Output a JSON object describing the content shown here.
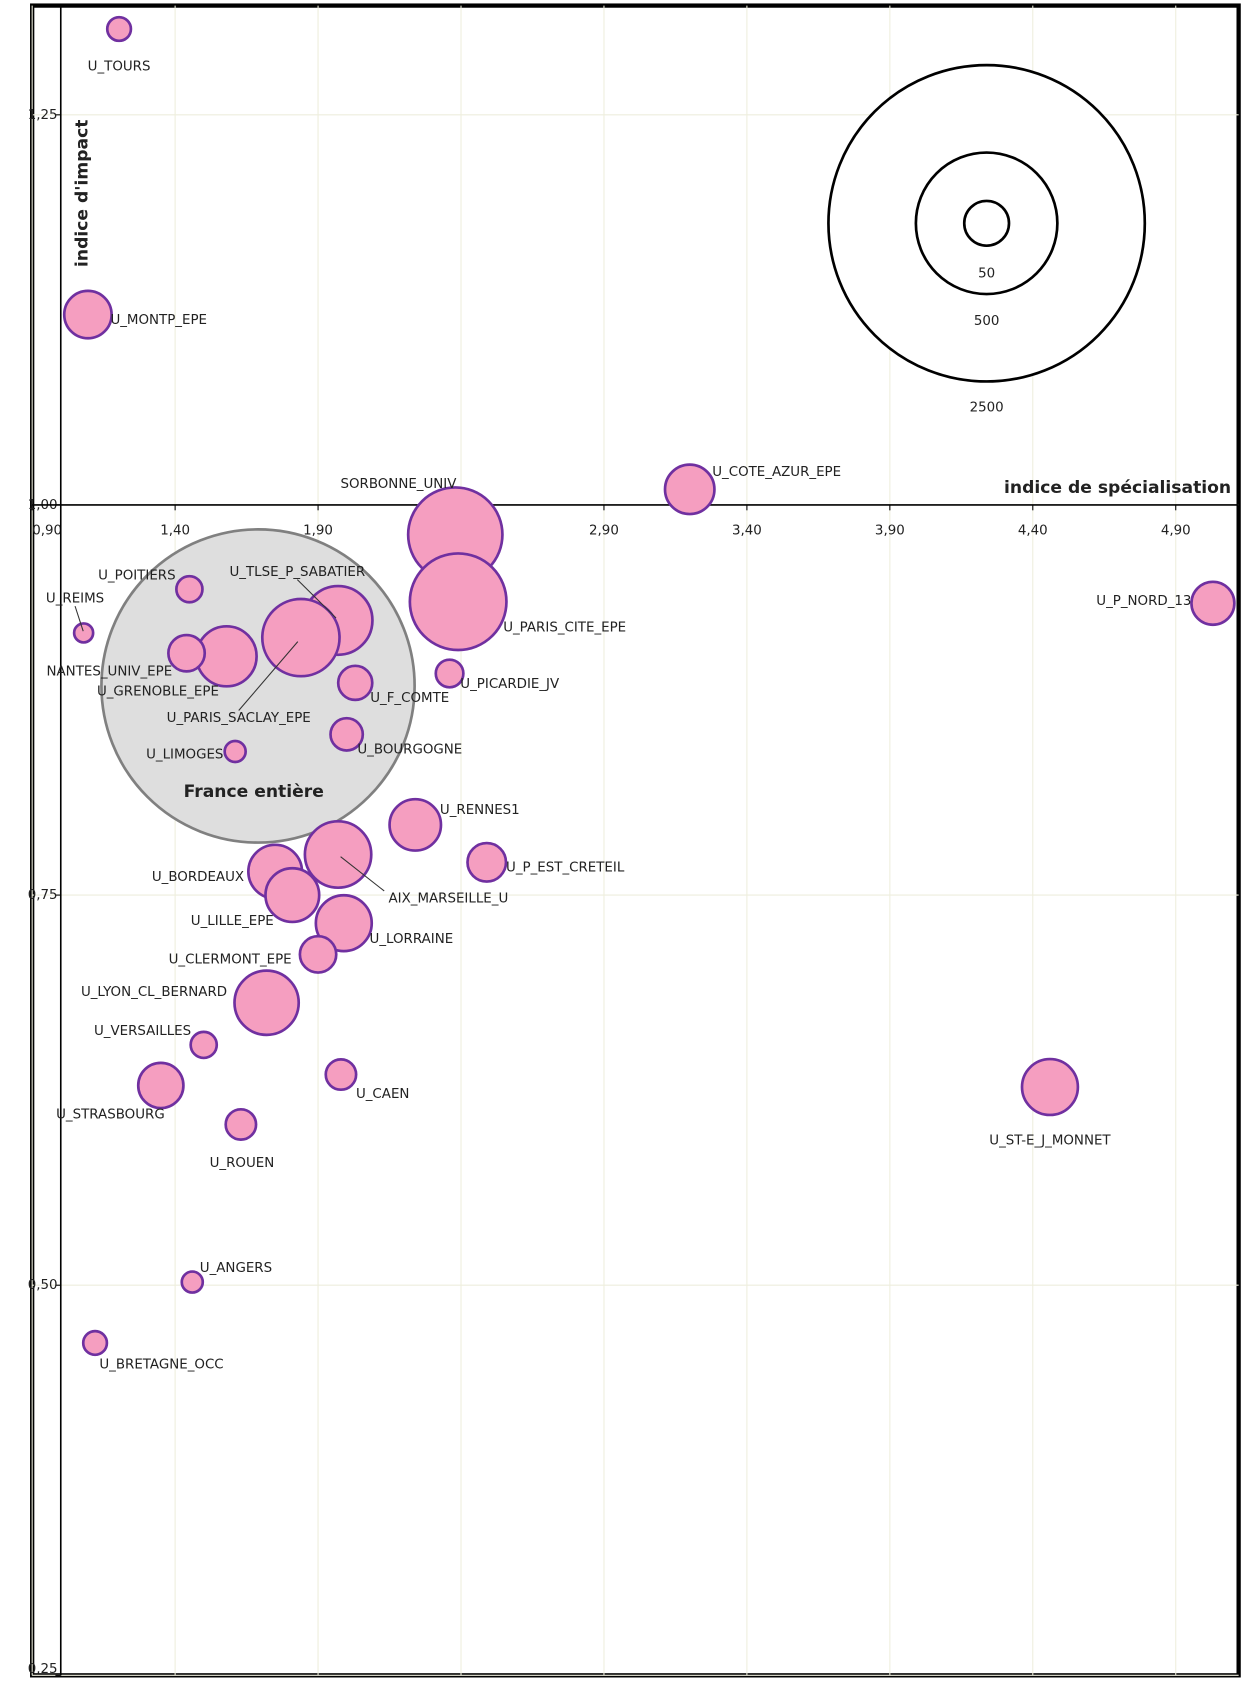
{
  "chart_data": {
    "type": "bubble",
    "xlabel": "indice de spécialisation",
    "ylabel": "indice d'impact",
    "xlim": [
      0.9,
      5.12
    ],
    "ylim": [
      0.25,
      1.32
    ],
    "xticks": [
      {
        "value": 0.9,
        "label": "0,90"
      },
      {
        "value": 1.4,
        "label": "1,40"
      },
      {
        "value": 1.9,
        "label": "1,90"
      },
      {
        "value": 2.4,
        "label": "2,40"
      },
      {
        "value": 2.9,
        "label": "2,90"
      },
      {
        "value": 3.4,
        "label": "3,40"
      },
      {
        "value": 3.9,
        "label": "3,90"
      },
      {
        "value": 4.4,
        "label": "4,40"
      },
      {
        "value": 4.9,
        "label": "4,90"
      }
    ],
    "yticks": [
      {
        "value": 0.25,
        "label": "0,25"
      },
      {
        "value": 0.5,
        "label": "0,50"
      },
      {
        "value": 0.75,
        "label": "0,75"
      },
      {
        "value": 1.0,
        "label": "1,00"
      },
      {
        "value": 1.25,
        "label": "1,25"
      }
    ],
    "x_axis_at": 1,
    "y_axis_at": 1,
    "grid": true,
    "color": "#f59ec0",
    "edge": "#7030a0",
    "points": [
      {
        "label": "U_TOURS",
        "x": 1.204,
        "y": 1.305,
        "size": 14
      },
      {
        "label": "U_MONTP_EPE",
        "x": 1.095,
        "y": 1.122,
        "size": 56
      },
      {
        "label": "SORBONNE_UNIV",
        "x": 2.38,
        "y": 0.981,
        "size": 222
      },
      {
        "label": "U_PARIS_CITE_EPE",
        "x": 2.39,
        "y": 0.938,
        "size": 233
      },
      {
        "label": "U_COTE_AZUR_EPE",
        "x": 3.2,
        "y": 1.01,
        "size": 61
      },
      {
        "label": "U_P_NORD_13",
        "x": 5.03,
        "y": 0.937,
        "size": 46
      },
      {
        "label": "U_REIMS",
        "x": 1.08,
        "y": 0.918,
        "size": 9
      },
      {
        "label": "France entière",
        "x": 1.69,
        "y": 0.884,
        "size": 2450,
        "color": "#dedede",
        "edge": "#808080"
      },
      {
        "label": "U_POITIERS",
        "x": 1.45,
        "y": 0.946,
        "size": 17
      },
      {
        "label": "U_TLSE_P_SABATIER",
        "x": 1.97,
        "y": 0.926,
        "size": 118
      },
      {
        "label": "U_PARIS_SACLAY_EPE",
        "x": 1.84,
        "y": 0.915,
        "size": 149
      },
      {
        "label": "U_GRENOBLE_EPE",
        "x": 1.58,
        "y": 0.903,
        "size": 90
      },
      {
        "label": "NANTES_UNIV_EPE",
        "x": 1.44,
        "y": 0.905,
        "size": 33
      },
      {
        "label": "U_F_COMTE",
        "x": 2.03,
        "y": 0.886,
        "size": 29
      },
      {
        "label": "U_PICARDIE_JV",
        "x": 2.36,
        "y": 0.892,
        "size": 19
      },
      {
        "label": "U_BOURGOGNE",
        "x": 2.0,
        "y": 0.853,
        "size": 26
      },
      {
        "label": "U_LIMOGES",
        "x": 1.61,
        "y": 0.842,
        "size": 11
      },
      {
        "label": "U_RENNES1",
        "x": 2.24,
        "y": 0.795,
        "size": 66
      },
      {
        "label": "U_P_EST_CRETEIL",
        "x": 2.49,
        "y": 0.771,
        "size": 37
      },
      {
        "label": "AIX_MARSEILLE_U",
        "x": 1.97,
        "y": 0.776,
        "size": 110
      },
      {
        "label": "U_BORDEAUX",
        "x": 1.75,
        "y": 0.765,
        "size": 72
      },
      {
        "label": "U_LILLE_EPE",
        "x": 1.81,
        "y": 0.75,
        "size": 72
      },
      {
        "label": "U_LORRAINE",
        "x": 1.99,
        "y": 0.732,
        "size": 78
      },
      {
        "label": "U_CLERMONT_EPE",
        "x": 1.9,
        "y": 0.712,
        "size": 33
      },
      {
        "label": "U_LYON_CL_BERNARD",
        "x": 1.72,
        "y": 0.681,
        "size": 103
      },
      {
        "label": "U_VERSAILLES",
        "x": 1.5,
        "y": 0.654,
        "size": 17
      },
      {
        "label": "U_CAEN",
        "x": 1.98,
        "y": 0.635,
        "size": 23
      },
      {
        "label": "U_STRASBOURG",
        "x": 1.35,
        "y": 0.628,
        "size": 51
      },
      {
        "label": "U_ROUEN",
        "x": 1.63,
        "y": 0.603,
        "size": 23
      },
      {
        "label": "U_ST-E_J_MONNET",
        "x": 4.46,
        "y": 0.627,
        "size": 78
      },
      {
        "label": "U_ANGERS",
        "x": 1.46,
        "y": 0.502,
        "size": 11
      },
      {
        "label": "U_BRETAGNE_OCC",
        "x": 1.12,
        "y": 0.463,
        "size": 14
      }
    ],
    "size_legend": [
      50,
      500,
      2500
    ]
  }
}
